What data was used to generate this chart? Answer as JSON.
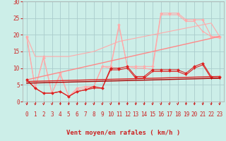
{
  "background_color": "#cceee8",
  "grid_color": "#aacccc",
  "xlabel": "Vent moyen/en rafales ( km/h )",
  "ylim": [
    0,
    30
  ],
  "xlim": [
    -0.5,
    23.5
  ],
  "yticks": [
    0,
    5,
    10,
    15,
    20,
    25,
    30
  ],
  "series": [
    {
      "name": "band_upper_plain",
      "color": "#ffaaaa",
      "linewidth": 0.8,
      "marker": null,
      "data_x": [
        0,
        1,
        2,
        3,
        4,
        5,
        6,
        7,
        8,
        9,
        10,
        11,
        12,
        13,
        14,
        15,
        16,
        17,
        18,
        19,
        20,
        21,
        22,
        23
      ],
      "data_y": [
        19.5,
        13.5,
        13.5,
        13.5,
        13.5,
        13.5,
        14.0,
        14.5,
        15.0,
        16.0,
        17.0,
        18.0,
        18.5,
        19.0,
        19.5,
        20.0,
        20.5,
        21.0,
        21.5,
        22.0,
        22.5,
        23.0,
        23.5,
        19.5
      ]
    },
    {
      "name": "upper_with_marker",
      "color": "#ffaaaa",
      "linewidth": 0.8,
      "marker": "D",
      "markersize": 2,
      "data_x": [
        0,
        1,
        2,
        3,
        4,
        5,
        6,
        7,
        8,
        9,
        10,
        11,
        12,
        13,
        14,
        15,
        16,
        17,
        18,
        19,
        20,
        21,
        22,
        23
      ],
      "data_y": [
        19.5,
        4.0,
        13.0,
        2.5,
        8.5,
        1.5,
        4.0,
        4.5,
        4.5,
        10.5,
        10.5,
        23.0,
        10.5,
        10.5,
        10.5,
        10.5,
        26.5,
        26.5,
        26.5,
        24.5,
        24.5,
        24.5,
        19.5,
        19.5
      ]
    },
    {
      "name": "upper_with_tri",
      "color": "#ffaaaa",
      "linewidth": 0.8,
      "marker": "v",
      "markersize": 2,
      "data_x": [
        0,
        1,
        2,
        3,
        4,
        5,
        6,
        7,
        8,
        9,
        10,
        11,
        12,
        13,
        14,
        15,
        16,
        17,
        18,
        19,
        20,
        21,
        22,
        23
      ],
      "data_y": [
        19.0,
        4.0,
        13.5,
        2.5,
        8.0,
        1.5,
        3.5,
        4.0,
        4.5,
        10.5,
        10.0,
        22.5,
        10.5,
        10.0,
        10.0,
        9.5,
        26.0,
        26.0,
        26.0,
        24.0,
        24.0,
        21.0,
        19.5,
        19.0
      ]
    },
    {
      "name": "linear_upper",
      "color": "#ff8888",
      "linewidth": 1.0,
      "marker": null,
      "data_x": [
        0,
        23
      ],
      "data_y": [
        6.5,
        19.5
      ]
    },
    {
      "name": "lower_with_marker",
      "color": "#dd2222",
      "linewidth": 0.8,
      "marker": "D",
      "markersize": 2,
      "data_x": [
        0,
        1,
        2,
        3,
        4,
        5,
        6,
        7,
        8,
        9,
        10,
        11,
        12,
        13,
        14,
        15,
        16,
        17,
        18,
        19,
        20,
        21,
        22,
        23
      ],
      "data_y": [
        6.5,
        4.0,
        2.5,
        2.5,
        3.0,
        1.5,
        3.0,
        3.5,
        4.5,
        4.0,
        10.0,
        10.0,
        10.5,
        7.5,
        7.5,
        9.5,
        9.5,
        9.5,
        9.5,
        8.5,
        10.5,
        11.5,
        7.5,
        7.5
      ]
    },
    {
      "name": "lower_with_tri",
      "color": "#dd2222",
      "linewidth": 0.8,
      "marker": "v",
      "markersize": 2,
      "data_x": [
        0,
        1,
        2,
        3,
        4,
        5,
        6,
        7,
        8,
        9,
        10,
        11,
        12,
        13,
        14,
        15,
        16,
        17,
        18,
        19,
        20,
        21,
        22,
        23
      ],
      "data_y": [
        6.5,
        4.0,
        2.5,
        2.5,
        3.0,
        1.5,
        3.0,
        3.5,
        4.0,
        4.0,
        9.5,
        9.5,
        10.0,
        7.0,
        7.0,
        9.0,
        9.0,
        9.0,
        9.0,
        8.0,
        10.0,
        11.0,
        7.0,
        7.0
      ]
    },
    {
      "name": "linear_lower",
      "color": "#dd2222",
      "linewidth": 1.0,
      "marker": null,
      "data_x": [
        0,
        23
      ],
      "data_y": [
        6.0,
        7.5
      ]
    },
    {
      "name": "linear_lower2",
      "color": "#aa0000",
      "linewidth": 1.0,
      "marker": null,
      "data_x": [
        0,
        23
      ],
      "data_y": [
        5.5,
        7.0
      ]
    }
  ],
  "arrow_color": "#cc2222",
  "xlabel_color": "#cc2222",
  "xlabel_fontsize": 6.5,
  "tick_color": "#cc2222",
  "tick_fontsize": 5.5
}
